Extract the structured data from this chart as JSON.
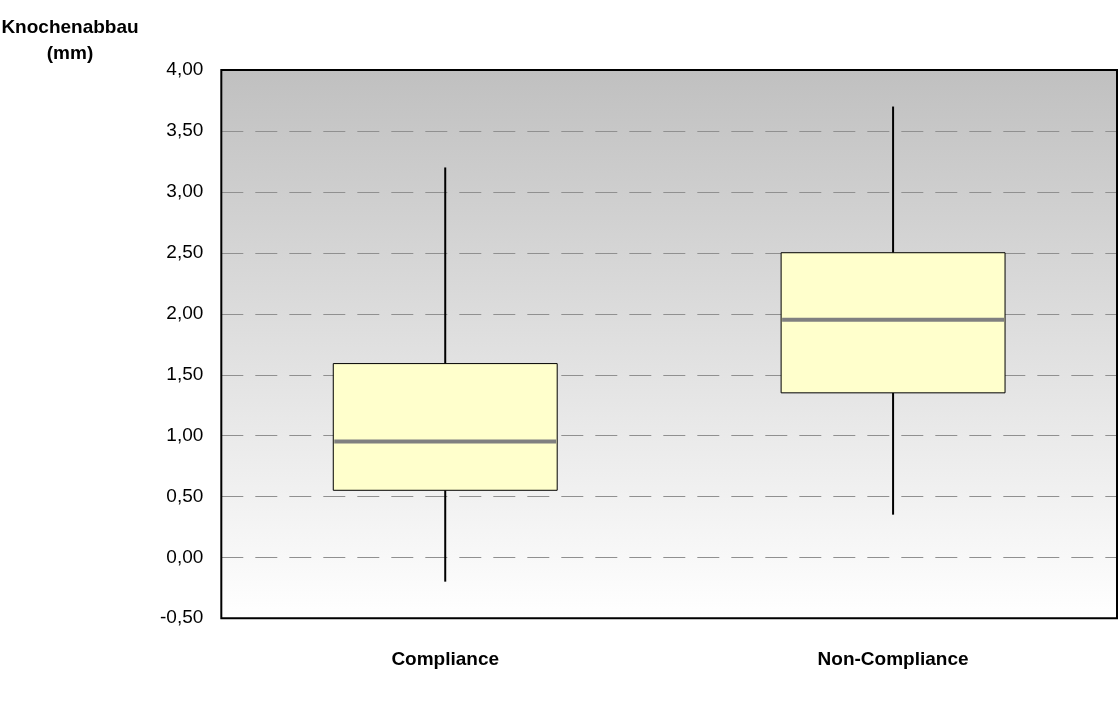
{
  "chart_data": {
    "type": "box",
    "ylabel": "Knochenabbau (mm)",
    "categories": [
      "Compliance",
      "Non-Compliance"
    ],
    "series": [
      {
        "color": "#ffffcc",
        "boxes": [
          {
            "low": -0.2,
            "q1": 0.55,
            "median": 0.95,
            "q3": 1.59,
            "high": 3.2
          },
          {
            "low": 0.35,
            "q1": 1.35,
            "median": 1.95,
            "q3": 2.5,
            "high": 3.7
          }
        ]
      }
    ],
    "ylim": [
      -0.5,
      4
    ],
    "yticks": [
      {
        "value": -0.5,
        "label": "-0,50"
      },
      {
        "value": 0,
        "label": "0,00"
      },
      {
        "value": 0.5,
        "label": "0,50"
      },
      {
        "value": 1,
        "label": "1,00"
      },
      {
        "value": 1.5,
        "label": "1,50"
      },
      {
        "value": 2,
        "label": "2,00"
      },
      {
        "value": 2.5,
        "label": "2,50"
      },
      {
        "value": 3,
        "label": "3,00"
      },
      {
        "value": 3.5,
        "label": "3,50"
      },
      {
        "value": 4,
        "label": "4,00"
      }
    ],
    "grid": "y",
    "legend": false
  }
}
